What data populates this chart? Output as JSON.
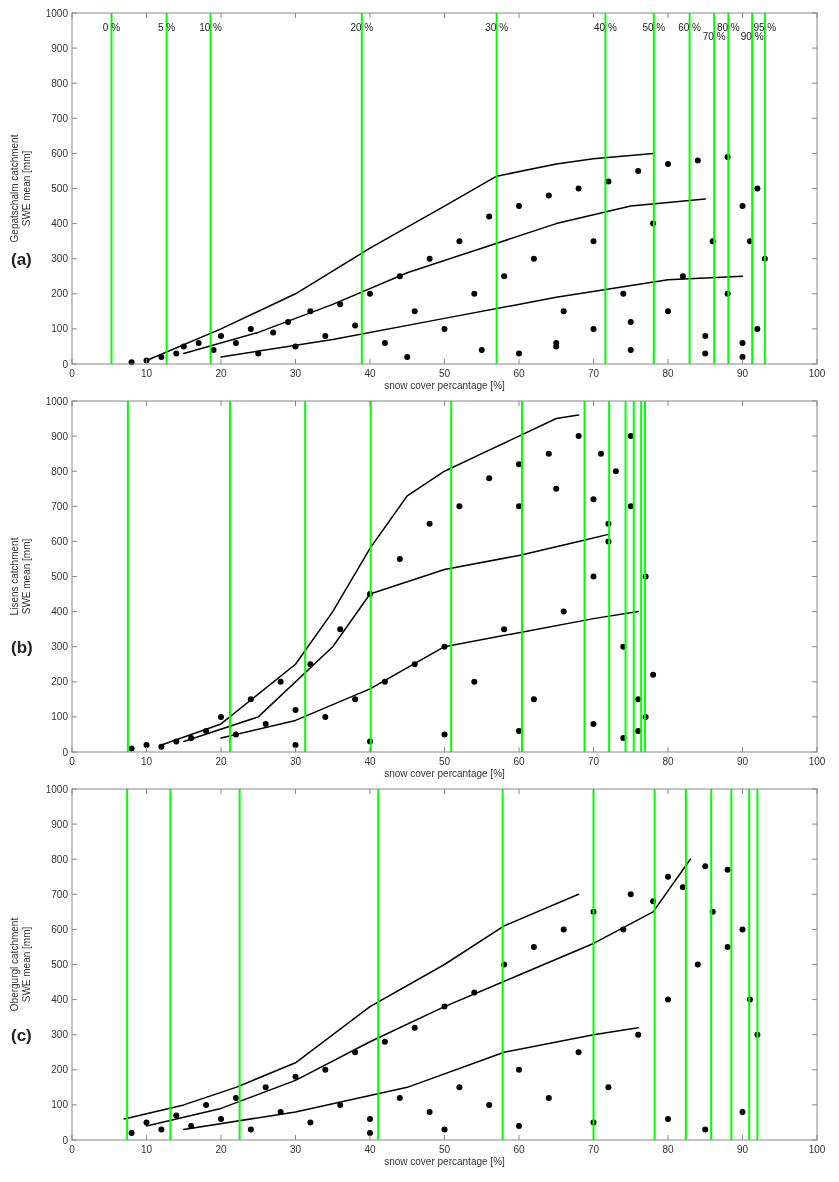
{
  "chart_data": [
    {
      "type": "scatter",
      "ylabel": "Gepatschalm catchment\nSWE mean [mm]",
      "xlabel": "snow cover percantage [%]",
      "annotations": [
        "(a)",
        {
          "text": "0 %",
          "x": 5.3,
          "y": 960
        },
        {
          "text": "5 %",
          "x": 12.7,
          "y": 960
        },
        {
          "text": "10 %",
          "x": 18.6,
          "y": 960
        },
        {
          "text": "20 %",
          "x": 38.9,
          "y": 960
        },
        {
          "text": "30 %",
          "x": 57.0,
          "y": 960
        },
        {
          "text": "40 %",
          "x": 71.6,
          "y": 960
        },
        {
          "text": "50 %",
          "x": 78.1,
          "y": 960
        },
        {
          "text": "60 %",
          "x": 82.9,
          "y": 960
        },
        {
          "text": "70 %",
          "x": 86.2,
          "y": 935
        },
        {
          "text": "80 %",
          "x": 88.1,
          "y": 960
        },
        {
          "text": "90 %",
          "x": 91.3,
          "y": 935
        },
        {
          "text": "95 %",
          "x": 93.0,
          "y": 960
        }
      ],
      "xlim": [
        0,
        100
      ],
      "xticks": [
        0,
        10,
        20,
        30,
        40,
        50,
        60,
        70,
        80,
        90,
        100
      ],
      "ylim": [
        0,
        1000
      ],
      "yticks": [
        0,
        100,
        200,
        300,
        400,
        500,
        600,
        700,
        800,
        900,
        1000
      ],
      "line_style": "solid",
      "ref_lines": [
        {
          "axis": "x",
          "value": 5.3,
          "color": "#00ff00"
        },
        {
          "axis": "x",
          "value": 12.7,
          "color": "#00ff00"
        },
        {
          "axis": "x",
          "value": 18.6,
          "color": "#00ff00"
        },
        {
          "axis": "x",
          "value": 38.9,
          "color": "#00ff00"
        },
        {
          "axis": "x",
          "value": 57.0,
          "color": "#00ff00"
        },
        {
          "axis": "x",
          "value": 71.6,
          "color": "#00ff00"
        },
        {
          "axis": "x",
          "value": 78.1,
          "color": "#00ff00"
        },
        {
          "axis": "x",
          "value": 82.9,
          "color": "#00ff00"
        },
        {
          "axis": "x",
          "value": 86.2,
          "color": "#00ff00"
        },
        {
          "axis": "x",
          "value": 88.1,
          "color": "#00ff00"
        },
        {
          "axis": "x",
          "value": 91.3,
          "color": "#00ff00"
        },
        {
          "axis": "x",
          "value": 93.0,
          "color": "#00ff00"
        }
      ],
      "series": [
        {
          "type": "scatter",
          "marker": "circle",
          "color": "#000000",
          "x": [
            8,
            10,
            12,
            14,
            15,
            17,
            19,
            20,
            22,
            24,
            25,
            27,
            29,
            30,
            32,
            34,
            36,
            38,
            40,
            42,
            44,
            46,
            48,
            50,
            52,
            54,
            56,
            58,
            60,
            62,
            64,
            66,
            68,
            70,
            72,
            74,
            76,
            78,
            80,
            82,
            84,
            86,
            88,
            90,
            92,
            93,
            60,
            65,
            70,
            75,
            80,
            85,
            88,
            90,
            91,
            92,
            45,
            55,
            65,
            75,
            85,
            90
          ],
          "values": [
            5,
            10,
            20,
            30,
            50,
            60,
            40,
            80,
            60,
            100,
            30,
            90,
            120,
            50,
            150,
            80,
            170,
            110,
            200,
            60,
            250,
            150,
            300,
            100,
            350,
            200,
            420,
            250,
            450,
            300,
            480,
            150,
            500,
            350,
            520,
            200,
            550,
            400,
            570,
            250,
            580,
            350,
            590,
            450,
            500,
            300,
            30,
            50,
            100,
            120,
            150,
            80,
            200,
            60,
            350,
            100,
            20,
            40,
            60,
            40,
            30,
            20
          ]
        },
        {
          "type": "line",
          "marker": "none",
          "color": "#000000",
          "x": [
            10,
            20,
            30,
            40,
            50,
            57,
            65,
            70,
            78
          ],
          "values": [
            10,
            100,
            200,
            330,
            450,
            535,
            570,
            585,
            600
          ]
        },
        {
          "type": "line",
          "marker": "none",
          "color": "#000000",
          "x": [
            15,
            25,
            35,
            45,
            55,
            65,
            75,
            85
          ],
          "values": [
            30,
            90,
            170,
            260,
            330,
            400,
            450,
            470
          ]
        },
        {
          "type": "line",
          "marker": "none",
          "color": "#000000",
          "x": [
            20,
            35,
            50,
            65,
            80,
            90
          ],
          "values": [
            20,
            70,
            130,
            190,
            240,
            250
          ]
        }
      ]
    },
    {
      "type": "scatter",
      "ylabel": "Lisens catchment\nSWE mean [mm]",
      "xlabel": "snow cover percantage [%]",
      "annotations": [
        "(b)"
      ],
      "xlim": [
        0,
        100
      ],
      "xticks": [
        0,
        10,
        20,
        30,
        40,
        50,
        60,
        70,
        80,
        90,
        100
      ],
      "ylim": [
        0,
        1000
      ],
      "yticks": [
        0,
        100,
        200,
        300,
        400,
        500,
        600,
        700,
        800,
        900,
        1000
      ],
      "line_style": "solid",
      "ref_lines": [
        {
          "axis": "x",
          "value": 7.5,
          "color": "#00ff00"
        },
        {
          "axis": "x",
          "value": 21.2,
          "color": "#00ff00"
        },
        {
          "axis": "x",
          "value": 31.3,
          "color": "#00ff00"
        },
        {
          "axis": "x",
          "value": 40.1,
          "color": "#00ff00"
        },
        {
          "axis": "x",
          "value": 50.9,
          "color": "#00ff00"
        },
        {
          "axis": "x",
          "value": 60.4,
          "color": "#00ff00"
        },
        {
          "axis": "x",
          "value": 68.8,
          "color": "#00ff00"
        },
        {
          "axis": "x",
          "value": 72.1,
          "color": "#00ff00"
        },
        {
          "axis": "x",
          "value": 74.3,
          "color": "#00ff00"
        },
        {
          "axis": "x",
          "value": 75.4,
          "color": "#00ff00"
        },
        {
          "axis": "x",
          "value": 76.4,
          "color": "#00ff00"
        },
        {
          "axis": "x",
          "value": 76.9,
          "color": "#00ff00"
        }
      ],
      "series": [
        {
          "type": "scatter",
          "marker": "circle",
          "color": "#000000",
          "x": [
            8,
            10,
            12,
            14,
            16,
            18,
            20,
            22,
            24,
            26,
            28,
            30,
            32,
            34,
            36,
            38,
            40,
            42,
            44,
            46,
            48,
            50,
            52,
            54,
            56,
            58,
            60,
            62,
            64,
            66,
            68,
            70,
            71,
            72,
            73,
            74,
            75,
            76,
            77,
            77,
            78,
            30,
            40,
            50,
            60,
            70,
            74,
            76,
            60,
            65,
            70,
            72,
            75
          ],
          "values": [
            10,
            20,
            15,
            30,
            40,
            60,
            100,
            50,
            150,
            80,
            200,
            120,
            250,
            100,
            350,
            150,
            450,
            200,
            550,
            250,
            650,
            300,
            700,
            200,
            780,
            350,
            820,
            150,
            850,
            400,
            900,
            500,
            850,
            600,
            800,
            300,
            700,
            150,
            500,
            100,
            220,
            20,
            30,
            50,
            60,
            80,
            40,
            60,
            700,
            750,
            720,
            650,
            900
          ]
        },
        {
          "type": "line",
          "marker": "none",
          "color": "#000000",
          "x": [
            12,
            20,
            30,
            35,
            40,
            45,
            50,
            55,
            60,
            65,
            68
          ],
          "values": [
            20,
            80,
            250,
            400,
            580,
            730,
            800,
            850,
            900,
            950,
            960
          ]
        },
        {
          "type": "line",
          "marker": "none",
          "color": "#000000",
          "x": [
            15,
            25,
            35,
            40,
            50,
            60,
            68,
            72
          ],
          "values": [
            30,
            100,
            300,
            450,
            520,
            560,
            600,
            620
          ]
        },
        {
          "type": "line",
          "marker": "none",
          "color": "#000000",
          "x": [
            20,
            30,
            40,
            50,
            60,
            70,
            76
          ],
          "values": [
            40,
            90,
            180,
            300,
            340,
            380,
            400
          ]
        }
      ]
    },
    {
      "type": "scatter",
      "ylabel": "Obergurgl catchment\nSWE mean [mm]",
      "xlabel": "snow cover percantage [%]",
      "annotations": [
        "(c)"
      ],
      "xlim": [
        0,
        100
      ],
      "xticks": [
        0,
        10,
        20,
        30,
        40,
        50,
        60,
        70,
        80,
        90,
        100
      ],
      "ylim": [
        0,
        1000
      ],
      "yticks": [
        0,
        100,
        200,
        300,
        400,
        500,
        600,
        700,
        800,
        900,
        1000
      ],
      "line_style": "solid",
      "ref_lines": [
        {
          "axis": "x",
          "value": 7.4,
          "color": "#00ff00"
        },
        {
          "axis": "x",
          "value": 13.2,
          "color": "#00ff00"
        },
        {
          "axis": "x",
          "value": 22.5,
          "color": "#00ff00"
        },
        {
          "axis": "x",
          "value": 41.1,
          "color": "#00ff00"
        },
        {
          "axis": "x",
          "value": 57.8,
          "color": "#00ff00"
        },
        {
          "axis": "x",
          "value": 70.0,
          "color": "#00ff00"
        },
        {
          "axis": "x",
          "value": 78.2,
          "color": "#00ff00"
        },
        {
          "axis": "x",
          "value": 82.4,
          "color": "#00ff00"
        },
        {
          "axis": "x",
          "value": 85.8,
          "color": "#00ff00"
        },
        {
          "axis": "x",
          "value": 88.5,
          "color": "#00ff00"
        },
        {
          "axis": "x",
          "value": 90.9,
          "color": "#00ff00"
        },
        {
          "axis": "x",
          "value": 92.0,
          "color": "#00ff00"
        }
      ],
      "series": [
        {
          "type": "scatter",
          "marker": "circle",
          "color": "#000000",
          "x": [
            8,
            10,
            12,
            14,
            16,
            18,
            20,
            22,
            24,
            26,
            28,
            30,
            32,
            34,
            36,
            38,
            40,
            42,
            44,
            46,
            48,
            50,
            52,
            54,
            56,
            58,
            60,
            62,
            64,
            66,
            68,
            70,
            72,
            74,
            76,
            78,
            80,
            82,
            84,
            86,
            88,
            90,
            91,
            92,
            40,
            50,
            60,
            70,
            80,
            85,
            90,
            75,
            80,
            85,
            88
          ],
          "values": [
            20,
            50,
            30,
            70,
            40,
            100,
            60,
            120,
            30,
            150,
            80,
            180,
            50,
            200,
            100,
            250,
            60,
            280,
            120,
            320,
            80,
            380,
            150,
            420,
            100,
            500,
            200,
            550,
            120,
            600,
            250,
            650,
            150,
            600,
            300,
            680,
            400,
            720,
            500,
            650,
            550,
            600,
            400,
            300,
            20,
            30,
            40,
            50,
            60,
            30,
            80,
            700,
            750,
            780,
            770
          ]
        },
        {
          "type": "line",
          "marker": "none",
          "color": "#000000",
          "x": [
            7,
            15,
            22,
            30,
            40,
            50,
            58,
            68
          ],
          "values": [
            60,
            100,
            150,
            220,
            380,
            500,
            610,
            700
          ]
        },
        {
          "type": "line",
          "marker": "none",
          "color": "#000000",
          "x": [
            10,
            20,
            30,
            40,
            50,
            60,
            70,
            78,
            83
          ],
          "values": [
            40,
            90,
            170,
            280,
            380,
            470,
            560,
            650,
            800
          ]
        },
        {
          "type": "line",
          "marker": "none",
          "color": "#000000",
          "x": [
            15,
            30,
            45,
            58,
            70,
            76
          ],
          "values": [
            30,
            80,
            150,
            250,
            300,
            320
          ]
        }
      ]
    }
  ]
}
